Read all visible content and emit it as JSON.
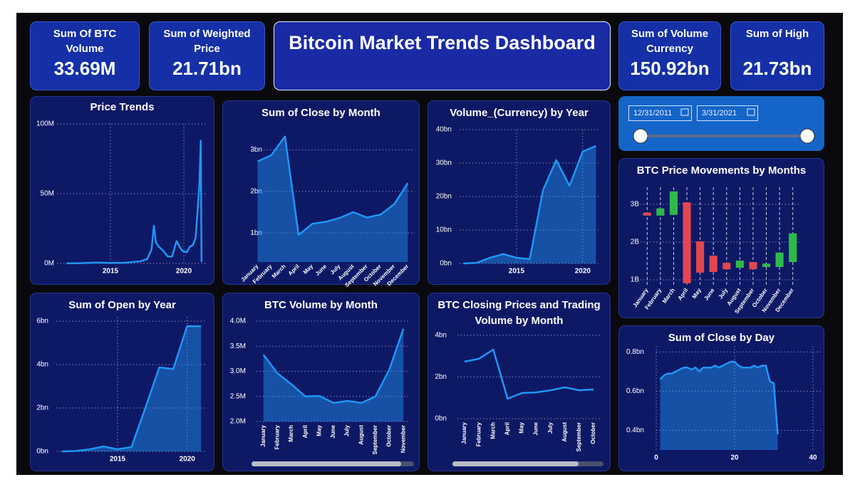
{
  "title": "Bitcoin Market Trends Dashboard",
  "kpis": [
    {
      "label": "Sum Of BTC Volume",
      "value": "33.69M"
    },
    {
      "label": "Sum of Weighted Price",
      "value": "21.71bn"
    },
    {
      "label": "Sum of Volume Currency",
      "value": "150.92bn"
    },
    {
      "label": "Sum of High",
      "value": "21.73bn"
    }
  ],
  "date_range": {
    "start": "12/31/2011",
    "end": "3/31/2021"
  },
  "chart_data": [
    {
      "type": "line",
      "title": "Price Trends",
      "color": "#2196f3",
      "grid": true,
      "x": [
        2012,
        2013,
        2014,
        2015,
        2016,
        2017,
        2017.5,
        2017.8,
        2017.96,
        2018.1,
        2018.3,
        2018.6,
        2018.9,
        2019.2,
        2019.5,
        2019.7,
        2019.9,
        2020.2,
        2020.4,
        2020.6,
        2020.8,
        2020.95,
        2021.05,
        2021.15,
        2021.2
      ],
      "values": [
        50000.0,
        200000.0,
        600000.0,
        300000.0,
        500000.0,
        1500000.0,
        3000000.0,
        10000000.0,
        27000000.0,
        15000000.0,
        12000000.0,
        9000000.0,
        5000000.0,
        5000000.0,
        16000000.0,
        12000000.0,
        9000000.0,
        8000000.0,
        12000000.0,
        13000000.0,
        18000000.0,
        40000000.0,
        55000000.0,
        88000000.0,
        1000000.0
      ],
      "xlim": [
        2011.36,
        2021.55
      ],
      "xticks": [
        2015,
        2020
      ],
      "ylim": [
        0,
        100000000.0
      ],
      "yticks": [
        {
          "value": 0,
          "label": "0M"
        },
        {
          "value": 50000000.0,
          "label": "50M"
        },
        {
          "value": 100000000.0,
          "label": "100M"
        }
      ]
    },
    {
      "type": "area",
      "title": "Sum of Close by Month",
      "color": "#2196f3",
      "grid": true,
      "categories": [
        "January",
        "February",
        "March",
        "April",
        "May",
        "June",
        "July",
        "August",
        "September",
        "October",
        "November",
        "December"
      ],
      "values": [
        2720000000.0,
        2870000000.0,
        3320000000.0,
        950000000.0,
        1220000000.0,
        1270000000.0,
        1360000000.0,
        1500000000.0,
        1370000000.0,
        1440000000.0,
        1690000000.0,
        2200000000.0
      ],
      "ylim": [
        300000000.0,
        3400000000.0
      ],
      "yticks": [
        {
          "value": 1000000000.0,
          "label": "1bn"
        },
        {
          "value": 2000000000.0,
          "label": "2bn"
        },
        {
          "value": 3000000000.0,
          "label": "3bn"
        }
      ]
    },
    {
      "type": "area",
      "title": "Volume_(Currency) by Year",
      "color": "#2196f3",
      "grid": true,
      "x": [
        2011,
        2012,
        2013,
        2014,
        2015,
        2016,
        2017,
        2018,
        2019,
        2020,
        2021
      ],
      "values": [
        0,
        200000000.0,
        1700000000.0,
        2800000000.0,
        1700000000.0,
        1300000000.0,
        21900000000.0,
        30900000000.0,
        23200000000.0,
        33400000000.0,
        35100000000.0
      ],
      "xlim": [
        2010.7,
        2021.3
      ],
      "xticks": [
        2015,
        2020
      ],
      "ylim": [
        0,
        40000000000.0
      ],
      "yticks": [
        {
          "value": 0,
          "label": "0bn"
        },
        {
          "value": 10000000000.0,
          "label": "10bn"
        },
        {
          "value": 20000000000.0,
          "label": "20bn"
        },
        {
          "value": 30000000000.0,
          "label": "30bn"
        },
        {
          "value": 40000000000.0,
          "label": "40bn"
        }
      ]
    },
    {
      "type": "candlestick",
      "title": "BTC Price Movements by Months",
      "up_color": "#2fb84a",
      "down_color": "#e2474f",
      "grid": true,
      "categories": [
        "January",
        "February",
        "March",
        "April",
        "May",
        "June",
        "July",
        "August",
        "September",
        "October",
        "November",
        "December"
      ],
      "open": [
        2780000000.0,
        2700000000.0,
        2720000000.0,
        3050000000.0,
        2020000000.0,
        1640000000.0,
        1450000000.0,
        1320000000.0,
        1470000000.0,
        1340000000.0,
        1340000000.0,
        1470000000.0
      ],
      "close": [
        2700000000.0,
        2890000000.0,
        3340000000.0,
        910000000.0,
        1190000000.0,
        1210000000.0,
        1280000000.0,
        1510000000.0,
        1280000000.0,
        1430000000.0,
        1720000000.0,
        2230000000.0
      ],
      "ylim": [
        850000000.0,
        3600000000.0
      ],
      "yticks": [
        {
          "value": 1000000000.0,
          "label": "1B"
        },
        {
          "value": 2000000000.0,
          "label": "2B"
        },
        {
          "value": 3000000000.0,
          "label": "3B"
        }
      ]
    },
    {
      "type": "area",
      "title": "Sum of Open by Year",
      "color": "#2196f3",
      "grid": true,
      "x": [
        2011,
        2012,
        2013,
        2014,
        2015,
        2016,
        2017,
        2018,
        2019,
        2020,
        2021
      ],
      "values": [
        0,
        20000000.0,
        100000000.0,
        230000000.0,
        100000000.0,
        200000000.0,
        2000000000.0,
        3870000000.0,
        3800000000.0,
        5770000000.0,
        5770000000.0
      ],
      "xlim": [
        2010.6,
        2021.4
      ],
      "xticks": [
        2015,
        2020
      ],
      "ylim": [
        0,
        6200000000.0
      ],
      "yticks": [
        {
          "value": 0,
          "label": "0bn"
        },
        {
          "value": 2000000000.0,
          "label": "2bn"
        },
        {
          "value": 4000000000.0,
          "label": "4bn"
        },
        {
          "value": 6000000000.0,
          "label": "6bn"
        }
      ]
    },
    {
      "type": "area",
      "title": "BTC Volume by Month",
      "color": "#2196f3",
      "grid": true,
      "categories": [
        "January",
        "February",
        "March",
        "April",
        "May",
        "June",
        "July",
        "August",
        "September",
        "October",
        "November"
      ],
      "values": [
        3330000.0,
        2960000.0,
        2740000.0,
        2500000.0,
        2510000.0,
        2370000.0,
        2410000.0,
        2370000.0,
        2500000.0,
        3040000.0,
        3850000.0
      ],
      "ylim": [
        2000000.0,
        4100000.0
      ],
      "yticks": [
        {
          "value": 2000000.0,
          "label": "2.0M"
        },
        {
          "value": 2500000.0,
          "label": "2.5M"
        },
        {
          "value": 3000000.0,
          "label": "3.0M"
        },
        {
          "value": 3500000.0,
          "label": "3.5M"
        },
        {
          "value": 4000000.0,
          "label": "4.0M"
        }
      ]
    },
    {
      "type": "line",
      "title": "BTC Closing Prices and Trading Volume by Month",
      "color": "#2196f3",
      "grid": true,
      "categories": [
        "January",
        "February",
        "March",
        "April",
        "May",
        "June",
        "July",
        "August",
        "September",
        "October"
      ],
      "values": [
        2730000000.0,
        2870000000.0,
        3310000000.0,
        960000000.0,
        1230000000.0,
        1260000000.0,
        1360000000.0,
        1500000000.0,
        1360000000.0,
        1400000000.0
      ],
      "ylim": [
        0,
        4300000000.0
      ],
      "yticks": [
        {
          "value": 0,
          "label": "0bn"
        },
        {
          "value": 2000000000.0,
          "label": "2bn"
        },
        {
          "value": 4000000000.0,
          "label": "4bn"
        }
      ]
    },
    {
      "type": "area",
      "title": "Sum of Close by Day",
      "color": "#2196f3",
      "grid": true,
      "x": [
        1,
        2,
        3,
        4,
        5,
        6,
        7,
        8,
        9,
        10,
        11,
        12,
        13,
        14,
        15,
        16,
        17,
        18,
        19,
        20,
        21,
        22,
        23,
        24,
        25,
        26,
        27,
        28,
        29,
        30,
        31
      ],
      "values": [
        660000000.0,
        680000000.0,
        690000000.0,
        690000000.0,
        700000000.0,
        710000000.0,
        720000000.0,
        720000000.0,
        710000000.0,
        720000000.0,
        700000000.0,
        720000000.0,
        720000000.0,
        720000000.0,
        730000000.0,
        720000000.0,
        730000000.0,
        740000000.0,
        750000000.0,
        750000000.0,
        730000000.0,
        720000000.0,
        720000000.0,
        720000000.0,
        730000000.0,
        720000000.0,
        730000000.0,
        730000000.0,
        650000000.0,
        640000000.0,
        380000000.0
      ],
      "xlim": [
        0,
        42
      ],
      "xticks": [
        0,
        20,
        40
      ],
      "ylim": [
        300000000.0,
        830000000.0
      ],
      "yticks": [
        {
          "value": 400000000.0,
          "label": "0.4bn"
        },
        {
          "value": 600000000.0,
          "label": "0.6bn"
        },
        {
          "value": 800000000.0,
          "label": "0.8bn"
        }
      ]
    }
  ]
}
